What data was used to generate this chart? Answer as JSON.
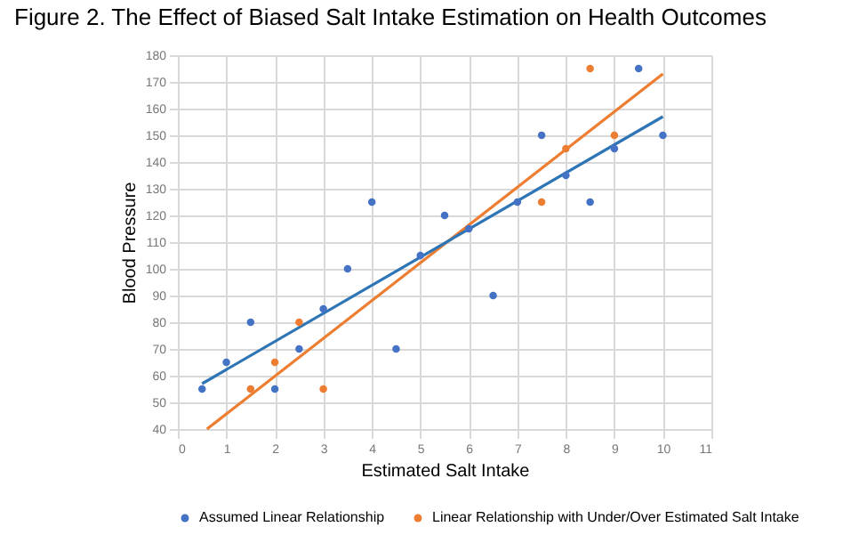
{
  "chart_data": {
    "type": "scatter",
    "title": "Figure 2. The Effect of Biased Salt Intake Estimation on Health Outcomes",
    "xlabel": "Estimated Salt Intake",
    "ylabel": "Blood Pressure",
    "xlim": [
      0,
      11
    ],
    "xticks": [
      0,
      1,
      2,
      3,
      4,
      5,
      6,
      7,
      8,
      9,
      10,
      11
    ],
    "ylim": [
      40,
      180
    ],
    "yticks": [
      40,
      50,
      60,
      70,
      80,
      90,
      100,
      110,
      120,
      130,
      140,
      150,
      160,
      170,
      180
    ],
    "grid": true,
    "legend": "bottom",
    "marker": "circle",
    "series": [
      {
        "name": "Assumed Linear Relationship",
        "color": "#4472c4",
        "x": [
          0.5,
          1,
          1.5,
          2,
          2.5,
          3,
          3.5,
          4,
          4.5,
          5,
          5.5,
          6,
          6.5,
          7,
          7.5,
          8,
          8.5,
          9,
          9.5,
          10
        ],
        "values": [
          55,
          65,
          80,
          55,
          70,
          85,
          100,
          125,
          70,
          105,
          120,
          115,
          90,
          125,
          150,
          135,
          125,
          145,
          175,
          150
        ]
      },
      {
        "name": "Linear Relationship with Under/Over Estimated Salt Intake",
        "color": "#ed7d31",
        "x": [
          1.5,
          2,
          2.5,
          3,
          7.5,
          8,
          8.5,
          9
        ],
        "values": [
          55,
          65,
          80,
          55,
          125,
          145,
          175,
          150
        ]
      },
      {
        "type": "line",
        "marker": "none",
        "color": "#2e75b6",
        "x": [
          0.5,
          10
        ],
        "values": [
          57,
          157
        ]
      },
      {
        "type": "line",
        "marker": "none",
        "color": "#ed7d31",
        "x": [
          0.6,
          10
        ],
        "values": [
          40,
          173
        ]
      }
    ]
  }
}
